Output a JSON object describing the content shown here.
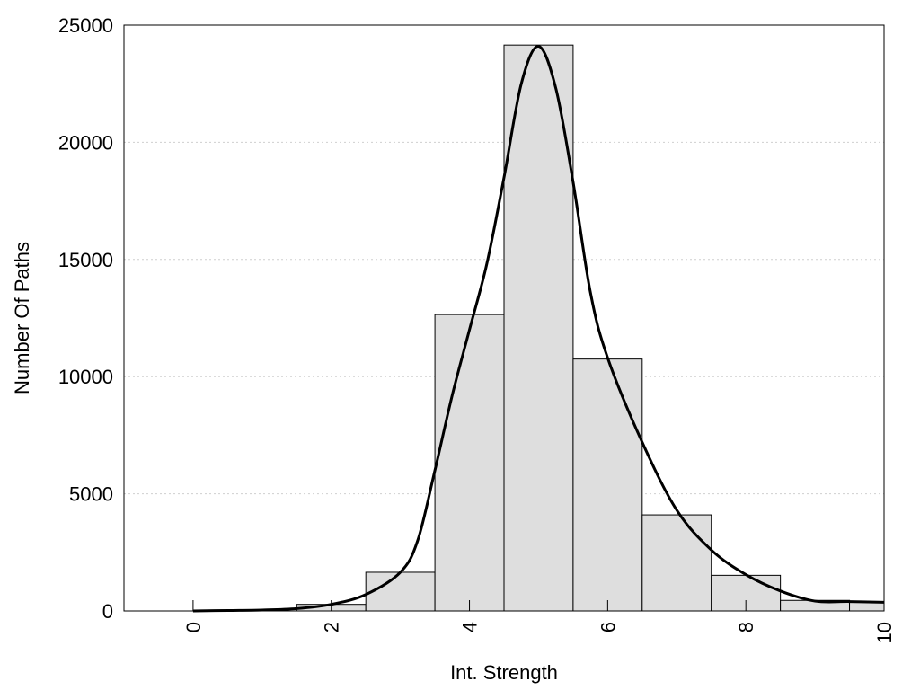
{
  "chart_data": {
    "type": "bar",
    "xlabel": "Int. Strength",
    "ylabel": "Number Of Paths",
    "xlim": [
      -1,
      10
    ],
    "ylim": [
      0,
      25000
    ],
    "x_ticks": [
      "0",
      "2",
      "4",
      "6",
      "8",
      "10"
    ],
    "y_ticks": [
      "0",
      "5000",
      "10000",
      "15000",
      "20000",
      "25000"
    ],
    "grid": "horizontal dotted",
    "colors": {
      "bar_fill": "#dedede",
      "bar_edge": "#000000",
      "curve": "#000000",
      "grid": "#cfcfcf"
    },
    "series": [
      {
        "kind": "histogram",
        "bins": [
          {
            "center": 0,
            "value": 0
          },
          {
            "center": 1,
            "value": 0
          },
          {
            "center": 2,
            "value": 280
          },
          {
            "center": 3,
            "value": 1650
          },
          {
            "center": 4,
            "value": 12650
          },
          {
            "center": 5,
            "value": 24150
          },
          {
            "center": 6,
            "value": 10750
          },
          {
            "center": 7,
            "value": 4100
          },
          {
            "center": 8,
            "value": 1520
          },
          {
            "center": 9,
            "value": 450
          },
          {
            "center": 10,
            "value": 380
          }
        ]
      },
      {
        "kind": "line",
        "x": [
          0,
          0.5,
          1,
          1.5,
          2,
          2.5,
          3,
          3.25,
          3.5,
          3.75,
          4,
          4.25,
          4.5,
          4.75,
          5,
          5.25,
          5.5,
          5.75,
          6,
          6.5,
          7,
          7.5,
          8,
          8.5,
          9,
          9.5,
          10
        ],
        "y": [
          0,
          20,
          40,
          100,
          280,
          700,
          1650,
          3000,
          6000,
          9200,
          12000,
          14800,
          18500,
          22500,
          24100,
          22300,
          18300,
          13600,
          10800,
          7200,
          4300,
          2600,
          1550,
          850,
          420,
          400,
          370
        ]
      }
    ]
  }
}
